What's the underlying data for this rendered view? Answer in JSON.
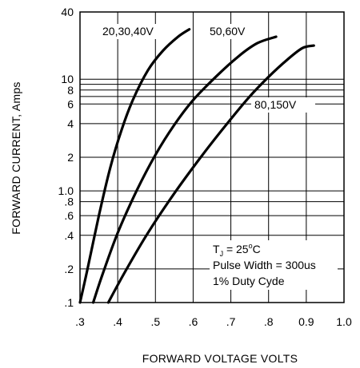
{
  "chart_data": {
    "type": "line",
    "xlabel": "FORWARD VOLTAGE  VOLTS",
    "ylabel": "FORWARD CURRENT, Amps",
    "xscale": "linear",
    "yscale": "log",
    "xlim": [
      0.3,
      1.0
    ],
    "ylim": [
      0.1,
      40
    ],
    "grid": true,
    "x_ticks": [
      {
        "value": 0.3,
        "label": ".3"
      },
      {
        "value": 0.4,
        "label": ".4"
      },
      {
        "value": 0.5,
        "label": ".5"
      },
      {
        "value": 0.6,
        "label": ".6"
      },
      {
        "value": 0.7,
        "label": ".7"
      },
      {
        "value": 0.8,
        "label": ".8"
      },
      {
        "value": 0.9,
        "label": "0.9"
      },
      {
        "value": 1.0,
        "label": "1.0"
      }
    ],
    "y_ticks": [
      {
        "value": 40,
        "label": "40"
      },
      {
        "value": 10,
        "label": "10"
      },
      {
        "value": 8,
        "label": "8"
      },
      {
        "value": 6,
        "label": "6"
      },
      {
        "value": 4,
        "label": "4"
      },
      {
        "value": 2,
        "label": "2"
      },
      {
        "value": 1.0,
        "label": "1.0"
      },
      {
        "value": 0.8,
        "label": ".8"
      },
      {
        "value": 0.6,
        "label": ".6"
      },
      {
        "value": 0.4,
        "label": ".4"
      },
      {
        "value": 0.2,
        "label": ".2"
      },
      {
        "value": 0.1,
        "label": ".1"
      }
    ],
    "extra_gridlines_y": [
      9,
      7
    ],
    "series": [
      {
        "name": "20,30,40V",
        "x": [
          0.3,
          0.32,
          0.35,
          0.38,
          0.41,
          0.44,
          0.48,
          0.52,
          0.56,
          0.59
        ],
        "y": [
          0.1,
          0.2,
          0.6,
          1.6,
          3.5,
          6.5,
          12,
          18,
          24,
          28
        ]
      },
      {
        "name": "50,60V",
        "x": [
          0.335,
          0.36,
          0.4,
          0.45,
          0.5,
          0.55,
          0.6,
          0.66,
          0.72,
          0.77,
          0.82
        ],
        "y": [
          0.1,
          0.18,
          0.42,
          1.0,
          2.1,
          3.9,
          6.5,
          10.5,
          16,
          21,
          24
        ]
      },
      {
        "name": "80,150V",
        "x": [
          0.375,
          0.42,
          0.48,
          0.55,
          0.62,
          0.69,
          0.75,
          0.8,
          0.85,
          0.89,
          0.92
        ],
        "y": [
          0.1,
          0.19,
          0.42,
          0.95,
          2.0,
          4.0,
          7.0,
          10.5,
          15,
          19,
          20
        ]
      }
    ],
    "annotation": {
      "line1_main": "T",
      "line1_sub": "J",
      "line1_rest": " = 25",
      "line1_sup": "o",
      "line1_unit": "C",
      "line2": "Pulse Width = 300us",
      "line3": "1% Duty Cyde"
    }
  }
}
